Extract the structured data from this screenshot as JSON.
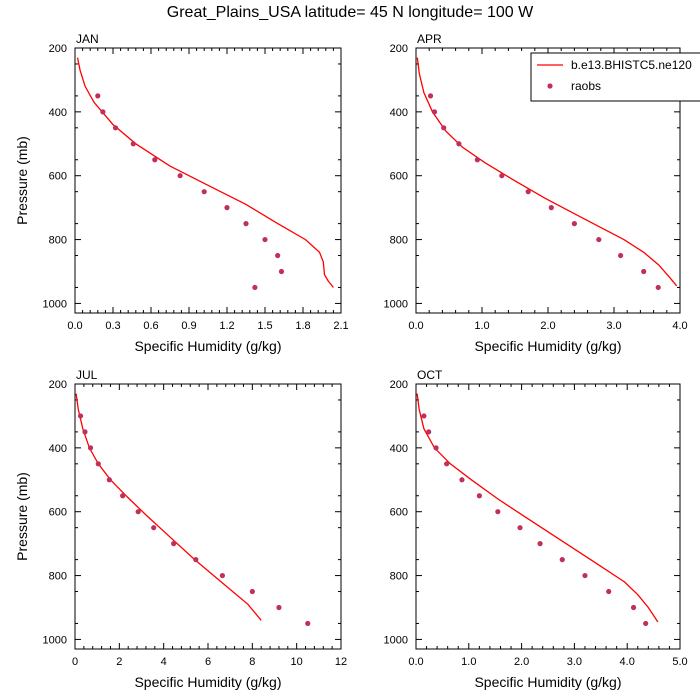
{
  "figure": {
    "title": "Great_Plains_USA  latitude= 45 N longitude= 100 W"
  },
  "legend": {
    "model_label": "b.e13.BHISTC5.ne120",
    "obs_label": "raobs",
    "model_color": "#ff0000",
    "obs_color": "#c0305a",
    "placement": "top-right of APR panel"
  },
  "chart_data": [
    {
      "type": "line",
      "panel": "JAN",
      "xlabel": "Specific Humidity (g/kg)",
      "ylabel": "Pressure (mb)",
      "xlim": [
        0,
        2.1
      ],
      "ylim": [
        1030,
        200
      ],
      "y_reversed": true,
      "xticks": [
        "0.0",
        "0.3",
        "0.6",
        "0.9",
        "1.2",
        "1.5",
        "1.8",
        "2.1"
      ],
      "yticks": [
        "200",
        "400",
        "600",
        "800",
        "1000"
      ],
      "series": [
        {
          "name": "b.e13.BHISTC5.ne120",
          "kind": "line",
          "x": [
            0.02,
            0.04,
            0.08,
            0.15,
            0.3,
            0.48,
            0.75,
            1.05,
            1.35,
            1.6,
            1.82,
            1.93,
            1.96,
            1.97,
            2.0,
            2.03,
            2.04
          ],
          "y": [
            230,
            270,
            320,
            370,
            440,
            500,
            570,
            630,
            690,
            750,
            800,
            840,
            870,
            910,
            930,
            945,
            950
          ]
        },
        {
          "name": "raobs",
          "kind": "scatter",
          "x": [
            0.18,
            0.22,
            0.32,
            0.46,
            0.63,
            0.83,
            1.02,
            1.2,
            1.35,
            1.5,
            1.6,
            1.63,
            1.42
          ],
          "y": [
            350,
            400,
            450,
            500,
            550,
            600,
            650,
            700,
            750,
            800,
            850,
            900,
            950
          ]
        }
      ]
    },
    {
      "type": "line",
      "panel": "APR",
      "xlabel": "Specific Humidity (g/kg)",
      "ylabel": "",
      "xlim": [
        0,
        4.0
      ],
      "ylim": [
        1030,
        200
      ],
      "y_reversed": true,
      "xticks": [
        "0.0",
        "1.0",
        "2.0",
        "3.0",
        "4.0"
      ],
      "yticks": [
        "200",
        "400",
        "600",
        "800",
        "1000"
      ],
      "series": [
        {
          "name": "b.e13.BHISTC5.ne120",
          "kind": "line",
          "x": [
            0.02,
            0.05,
            0.12,
            0.25,
            0.45,
            0.7,
            1.05,
            1.45,
            1.95,
            2.5,
            3.15,
            3.45,
            3.68,
            3.85,
            3.95
          ],
          "y": [
            230,
            280,
            340,
            400,
            460,
            510,
            560,
            610,
            670,
            730,
            800,
            840,
            880,
            920,
            945
          ]
        },
        {
          "name": "raobs",
          "kind": "scatter",
          "x": [
            0.22,
            0.28,
            0.42,
            0.65,
            0.93,
            1.3,
            1.7,
            2.05,
            2.4,
            2.77,
            3.1,
            3.45,
            3.67
          ],
          "y": [
            350,
            400,
            450,
            500,
            550,
            600,
            650,
            700,
            750,
            800,
            850,
            900,
            950
          ]
        }
      ]
    },
    {
      "type": "line",
      "panel": "JUL",
      "xlabel": "Specific Humidity (g/kg)",
      "ylabel": "Pressure (mb)",
      "xlim": [
        0,
        12
      ],
      "ylim": [
        1030,
        200
      ],
      "y_reversed": true,
      "xticks": [
        "0",
        "2",
        "4",
        "6",
        "8",
        "10",
        "12"
      ],
      "yticks": [
        "200",
        "400",
        "600",
        "800",
        "1000"
      ],
      "series": [
        {
          "name": "b.e13.BHISTC5.ne120",
          "kind": "line",
          "x": [
            0.05,
            0.15,
            0.35,
            0.65,
            1.05,
            1.6,
            2.3,
            3.2,
            4.3,
            5.4,
            6.6,
            7.8,
            8.4
          ],
          "y": [
            230,
            280,
            340,
            400,
            450,
            500,
            550,
            610,
            680,
            750,
            820,
            890,
            940
          ]
        },
        {
          "name": "raobs",
          "kind": "scatter",
          "x": [
            0.25,
            0.45,
            0.7,
            1.05,
            1.55,
            2.15,
            2.85,
            3.55,
            4.45,
            5.45,
            6.65,
            8.0,
            9.2,
            10.5
          ],
          "y": [
            300,
            350,
            400,
            450,
            500,
            550,
            600,
            650,
            700,
            750,
            800,
            850,
            900,
            950
          ]
        }
      ]
    },
    {
      "type": "line",
      "panel": "OCT",
      "xlabel": "Specific Humidity (g/kg)",
      "ylabel": "",
      "xlim": [
        0,
        5.0
      ],
      "ylim": [
        1030,
        200
      ],
      "y_reversed": true,
      "xticks": [
        "0.0",
        "1.0",
        "2.0",
        "3.0",
        "4.0",
        "5.0"
      ],
      "yticks": [
        "200",
        "400",
        "600",
        "800",
        "1000"
      ],
      "series": [
        {
          "name": "b.e13.BHISTC5.ne120",
          "kind": "line",
          "x": [
            0.02,
            0.06,
            0.15,
            0.35,
            0.65,
            1.05,
            1.55,
            2.1,
            2.75,
            3.4,
            3.95,
            4.2,
            4.4,
            4.58
          ],
          "y": [
            230,
            280,
            340,
            400,
            450,
            500,
            560,
            620,
            690,
            760,
            820,
            860,
            900,
            945
          ]
        },
        {
          "name": "raobs",
          "kind": "scatter",
          "x": [
            0.15,
            0.24,
            0.38,
            0.58,
            0.87,
            1.2,
            1.55,
            1.97,
            2.35,
            2.77,
            3.2,
            3.65,
            4.12,
            4.35
          ],
          "y": [
            300,
            350,
            400,
            450,
            500,
            550,
            600,
            650,
            700,
            750,
            800,
            850,
            900,
            950
          ]
        }
      ]
    }
  ]
}
